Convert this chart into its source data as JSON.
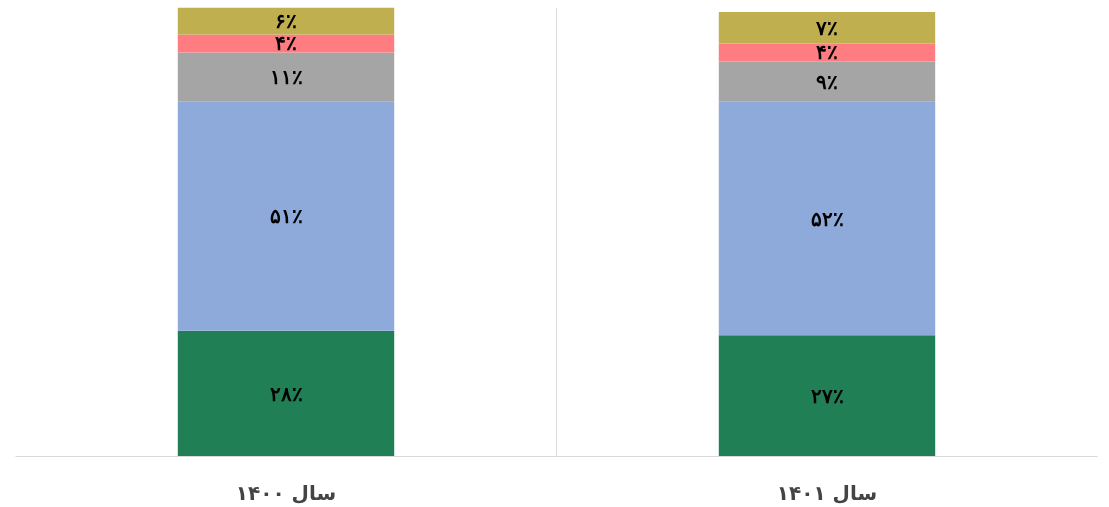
{
  "chart_data": {
    "type": "bar",
    "stacked": true,
    "categories": [
      "سال ۱۴۰۰",
      "سال ۱۴۰۱"
    ],
    "series": [
      {
        "color": "#217f56",
        "values": [
          28,
          27
        ],
        "value_labels": [
          "۲۸٪",
          "۲۷٪"
        ]
      },
      {
        "color": "#8eaadb",
        "values": [
          51,
          52
        ],
        "value_labels": [
          "۵۱٪",
          "۵۲٪"
        ]
      },
      {
        "color": "#a5a5a5",
        "values": [
          11,
          9
        ],
        "value_labels": [
          "۱۱٪",
          "۹٪"
        ]
      },
      {
        "color": "#ff7c80",
        "values": [
          4,
          4
        ],
        "value_labels": [
          "۴٪",
          "۴٪"
        ]
      },
      {
        "color": "#bfaf4f",
        "values": [
          6,
          7
        ],
        "value_labels": [
          "۶٪",
          "۷٪"
        ]
      }
    ],
    "ylim": [
      0,
      100
    ],
    "tick_labels": "x",
    "grid": "x"
  }
}
